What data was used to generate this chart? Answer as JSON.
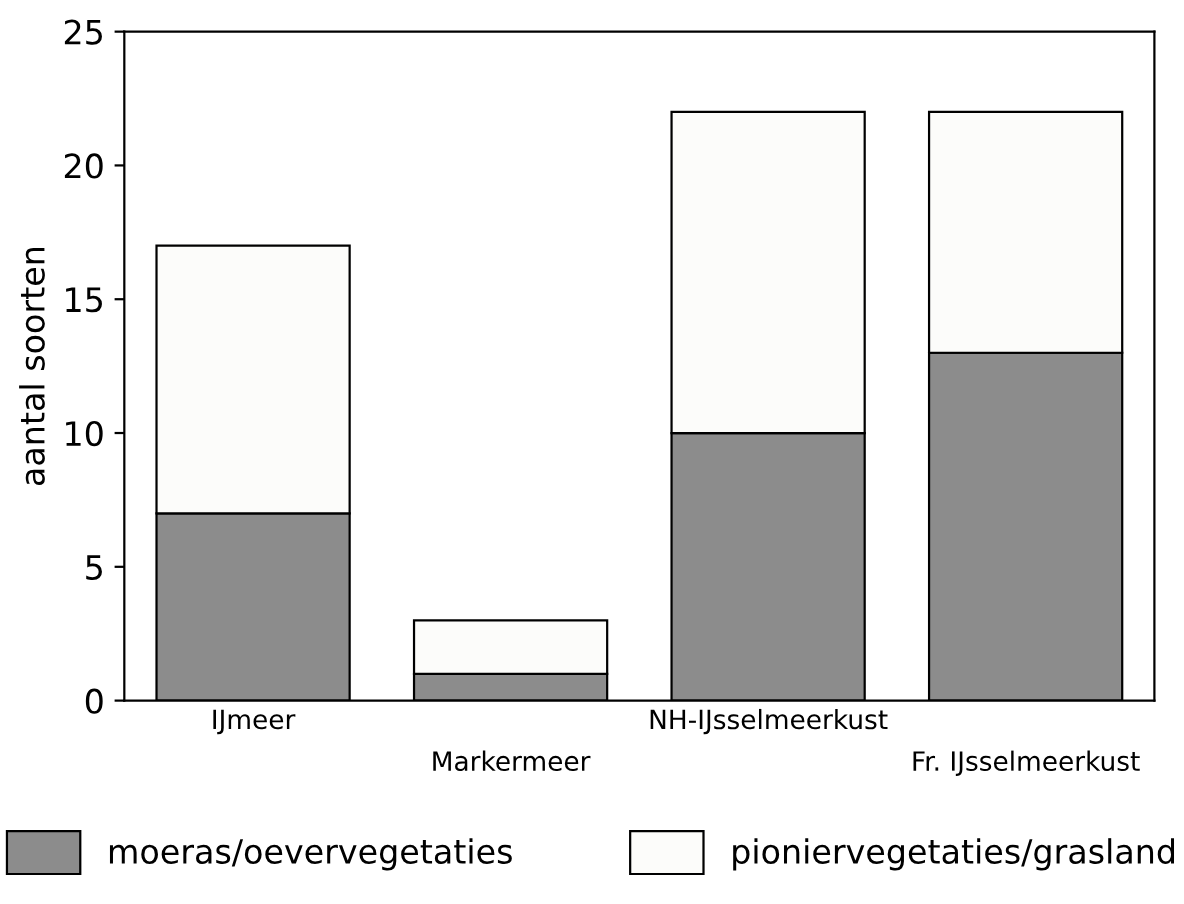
{
  "chart_data": {
    "type": "bar",
    "stacked": true,
    "ylabel": "aantal soorten",
    "categories": [
      "IJmeer",
      "Markermeer",
      "NH-IJsselmeerkust",
      "Fr. IJsselmeerkust"
    ],
    "series": [
      {
        "name": "moeras/oevervegetaties",
        "color": "#8c8c8c",
        "values": [
          7,
          1,
          10,
          13
        ]
      },
      {
        "name": "pioniervegetaties/grasland",
        "color": "#fcfcfa",
        "values": [
          10,
          2,
          12,
          9
        ]
      }
    ],
    "ylim": [
      0,
      25
    ],
    "yticks": [
      0,
      5,
      10,
      15,
      20,
      25
    ],
    "grid": false,
    "legend": "bottom"
  }
}
